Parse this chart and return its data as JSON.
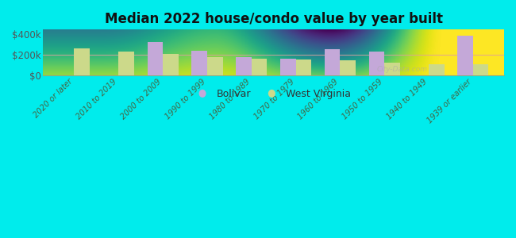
{
  "title": "Median 2022 house/condo value by year built",
  "categories": [
    "2020 or later",
    "2010 to 2019",
    "2000 to 2009",
    "1990 to 1999",
    "1980 to 1989",
    "1970 to 1979",
    "1960 to 1969",
    "1950 to 1959",
    "1940 to 1949",
    "1939 or earlier"
  ],
  "bolivar": [
    0,
    0,
    320000,
    235000,
    175000,
    163000,
    248000,
    228000,
    0,
    385000
  ],
  "west_virginia": [
    258000,
    225000,
    205000,
    173000,
    158000,
    153000,
    148000,
    120000,
    103000,
    107000
  ],
  "bolivar_color": "#c4a8d8",
  "west_virginia_color": "#ccd98a",
  "background_color": "#00ecec",
  "plot_bg_top": "#c8dfa0",
  "plot_bg_bottom": "#f0f8e8",
  "ylabel_color": "#555555",
  "title_color": "#111111",
  "yticks": [
    0,
    200000,
    400000
  ],
  "ytick_labels": [
    "$0",
    "$200k",
    "$400k"
  ],
  "ylim": [
    0,
    440000
  ],
  "bar_width": 0.35,
  "legend_bolivar": "Bolivar",
  "legend_wv": "West Virginia"
}
